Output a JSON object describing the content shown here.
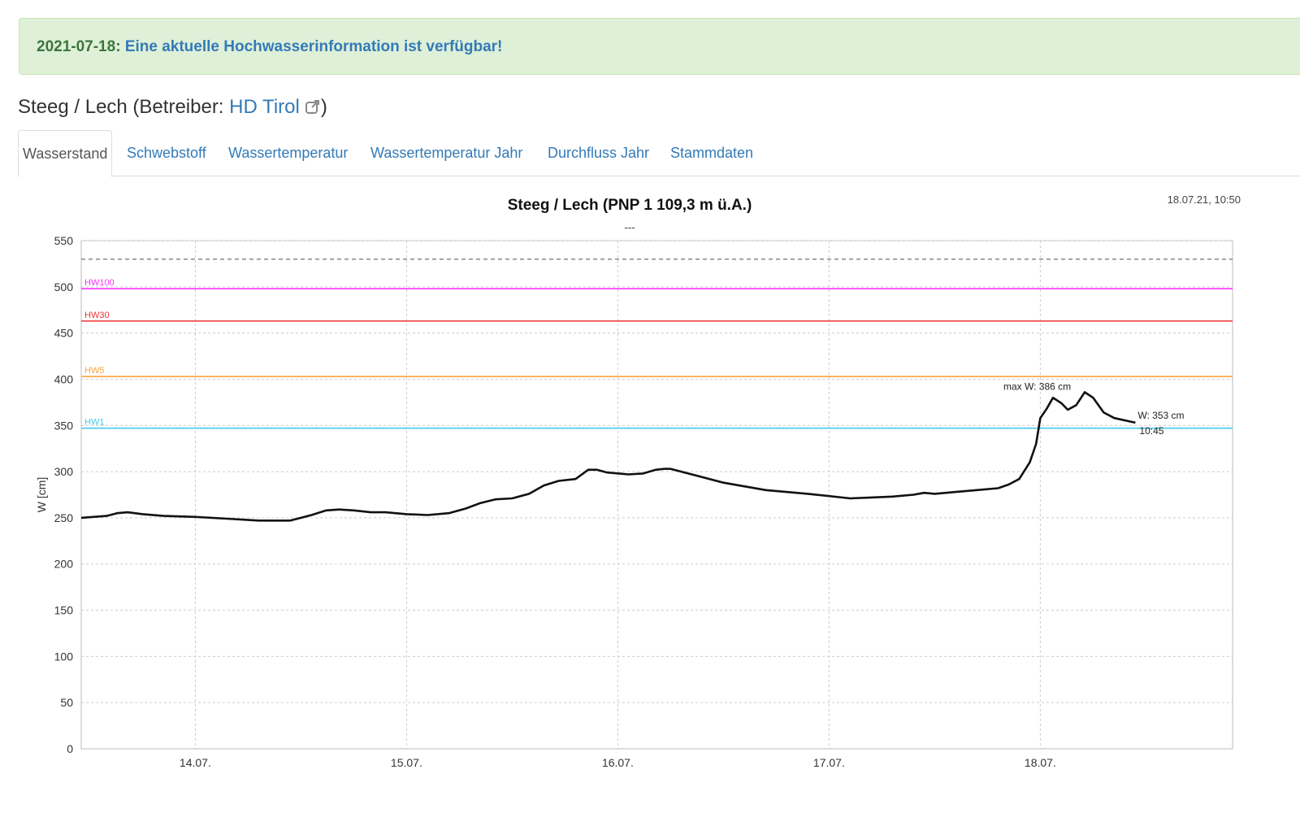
{
  "alert": {
    "date": "2021-07-18:",
    "message": "Eine aktuelle Hochwasserinformation ist verfügbar!"
  },
  "station": {
    "title_prefix": "Steeg / Lech (Betreiber: ",
    "operator": "HD Tirol",
    "title_suffix": ")",
    "operator_icon": "external-link-icon"
  },
  "tabs": [
    {
      "label": "Wasserstand",
      "active": true
    },
    {
      "label": "Schwebstoff",
      "active": false
    },
    {
      "label": "Wassertemperatur",
      "active": false
    },
    {
      "label": "Wassertemperatur Jahr",
      "active": false
    },
    {
      "label": "Durchfluss Jahr",
      "active": false
    },
    {
      "label": "Stammdaten",
      "active": false
    }
  ],
  "chart_data": {
    "type": "line",
    "title": "Steeg / Lech (PNP 1 109,3 m ü.A.)",
    "subtitle": "---",
    "timestamp": "18.07.21, 10:50",
    "ylabel": "W [cm]",
    "ylim": [
      0,
      550
    ],
    "yticks": [
      0,
      50,
      100,
      150,
      200,
      250,
      300,
      350,
      400,
      450,
      500,
      550
    ],
    "xlim": [
      13.46,
      18.91
    ],
    "xticks": [
      {
        "value": 14,
        "label": "14.07."
      },
      {
        "value": 15,
        "label": "15.07."
      },
      {
        "value": 16,
        "label": "16.07."
      },
      {
        "value": 17,
        "label": "17.07."
      },
      {
        "value": 18,
        "label": "18.07."
      }
    ],
    "grid": true,
    "thresholds": [
      {
        "name": "HW100",
        "value": 498,
        "color": "#ff33ff"
      },
      {
        "name": "HW30",
        "value": 463,
        "color": "#ee3333"
      },
      {
        "name": "HW5",
        "value": 403,
        "color": "#ffa040"
      },
      {
        "name": "HW1",
        "value": 347,
        "color": "#44ccee"
      }
    ],
    "dashed_line": {
      "value": 530,
      "color": "#888888"
    },
    "series": [
      {
        "color": "#111111",
        "x": [
          13.46,
          13.58,
          13.63,
          13.68,
          13.75,
          13.85,
          14.0,
          14.15,
          14.3,
          14.45,
          14.55,
          14.62,
          14.68,
          14.75,
          14.83,
          14.9,
          15.0,
          15.1,
          15.2,
          15.28,
          15.35,
          15.42,
          15.5,
          15.58,
          15.65,
          15.72,
          15.8,
          15.86,
          15.9,
          15.95,
          16.05,
          16.12,
          16.18,
          16.22,
          16.25,
          16.3,
          16.4,
          16.5,
          16.7,
          16.9,
          17.1,
          17.2,
          17.3,
          17.4,
          17.45,
          17.5,
          17.6,
          17.7,
          17.8,
          17.85,
          17.9,
          17.95,
          17.98,
          18.0,
          18.03,
          18.06,
          18.1,
          18.13,
          18.17,
          18.21,
          18.25,
          18.3,
          18.35,
          18.45
        ],
        "y": [
          250,
          252,
          255,
          256,
          254,
          252,
          251,
          249,
          247,
          247,
          253,
          258,
          259,
          258,
          256,
          256,
          254,
          253,
          255,
          260,
          266,
          270,
          271,
          276,
          285,
          290,
          292,
          302,
          302,
          299,
          297,
          298,
          302,
          303,
          303,
          300,
          294,
          288,
          280,
          276,
          271,
          272,
          273,
          275,
          277,
          276,
          278,
          280,
          282,
          286,
          292,
          310,
          330,
          358,
          368,
          380,
          374,
          367,
          372,
          386,
          380,
          364,
          358,
          353
        ]
      }
    ],
    "annotations": [
      {
        "text": "max W: 386 cm",
        "x": 18.21,
        "y": 386
      },
      {
        "text": "W: 353 cm",
        "x": 18.45,
        "y": 353
      },
      {
        "text": "10:45",
        "x": 18.45,
        "y": 353
      }
    ]
  }
}
